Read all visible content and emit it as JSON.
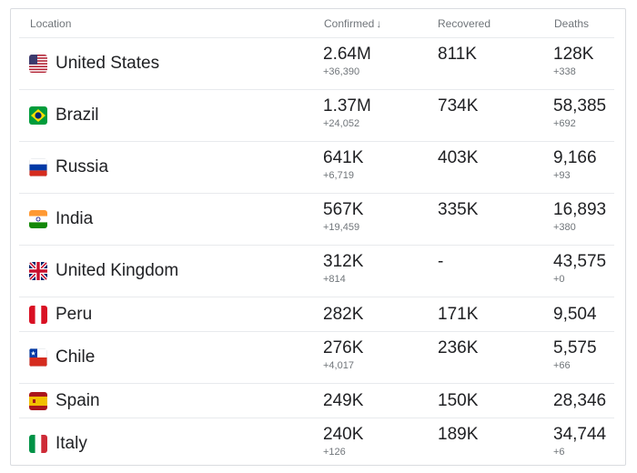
{
  "header": {
    "location": "Location",
    "confirmed": "Confirmed",
    "sort_indicator": "arrow-down-icon",
    "recovered": "Recovered",
    "deaths": "Deaths"
  },
  "rows": [
    {
      "flag": "us-flag-icon",
      "country": "United States",
      "confirmed": "2.64M",
      "confirmed_delta": "+36,390",
      "recovered": "811K",
      "deaths": "128K",
      "deaths_delta": "+338"
    },
    {
      "flag": "brazil-flag-icon",
      "country": "Brazil",
      "confirmed": "1.37M",
      "confirmed_delta": "+24,052",
      "recovered": "734K",
      "deaths": "58,385",
      "deaths_delta": "+692"
    },
    {
      "flag": "russia-flag-icon",
      "country": "Russia",
      "confirmed": "641K",
      "confirmed_delta": "+6,719",
      "recovered": "403K",
      "deaths": "9,166",
      "deaths_delta": "+93"
    },
    {
      "flag": "india-flag-icon",
      "country": "India",
      "confirmed": "567K",
      "confirmed_delta": "+19,459",
      "recovered": "335K",
      "deaths": "16,893",
      "deaths_delta": "+380"
    },
    {
      "flag": "uk-flag-icon",
      "country": "United Kingdom",
      "confirmed": "312K",
      "confirmed_delta": "+814",
      "recovered": "-",
      "deaths": "43,575",
      "deaths_delta": "+0"
    },
    {
      "flag": "peru-flag-icon",
      "country": "Peru",
      "confirmed": "282K",
      "confirmed_delta": "",
      "recovered": "171K",
      "deaths": "9,504",
      "deaths_delta": ""
    },
    {
      "flag": "chile-flag-icon",
      "country": "Chile",
      "confirmed": "276K",
      "confirmed_delta": "+4,017",
      "recovered": "236K",
      "deaths": "5,575",
      "deaths_delta": "+66"
    },
    {
      "flag": "spain-flag-icon",
      "country": "Spain",
      "confirmed": "249K",
      "confirmed_delta": "",
      "recovered": "150K",
      "deaths": "28,346",
      "deaths_delta": ""
    },
    {
      "flag": "italy-flag-icon",
      "country": "Italy",
      "confirmed": "240K",
      "confirmed_delta": "+126",
      "recovered": "189K",
      "deaths": "34,744",
      "deaths_delta": "+6"
    }
  ],
  "colors": {
    "text": "#202124",
    "secondary": "#70757a",
    "divider": "#e8eaed"
  }
}
